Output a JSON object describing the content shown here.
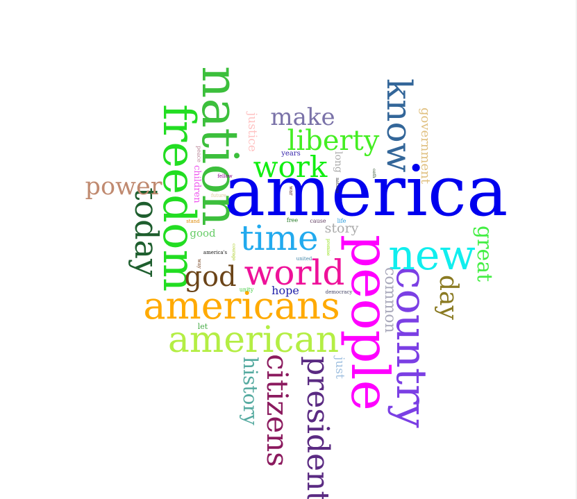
{
  "cloud": {
    "words": [
      {
        "id": "america",
        "text": "america",
        "color": "#0000ee"
      },
      {
        "id": "nation",
        "text": "nation",
        "color": "#3cbf3c"
      },
      {
        "id": "freedom",
        "text": "freedom",
        "color": "#22dd22"
      },
      {
        "id": "people",
        "text": "people",
        "color": "#ff00ff"
      },
      {
        "id": "country",
        "text": "country",
        "color": "#7b3fe4"
      },
      {
        "id": "americans",
        "text": "americans",
        "color": "#ffaa00"
      },
      {
        "id": "american",
        "text": "american",
        "color": "#b4ee44"
      },
      {
        "id": "new",
        "text": "new",
        "color": "#11eeee"
      },
      {
        "id": "know",
        "text": "know",
        "color": "#336699"
      },
      {
        "id": "world",
        "text": "world",
        "color": "#ee1199"
      },
      {
        "id": "time",
        "text": "time",
        "color": "#22aaee"
      },
      {
        "id": "work",
        "text": "work",
        "color": "#11ee11"
      },
      {
        "id": "today",
        "text": "today",
        "color": "#1e5e2e"
      },
      {
        "id": "power",
        "text": "power",
        "color": "#c08a70"
      },
      {
        "id": "make",
        "text": "make",
        "color": "#7a72a8"
      },
      {
        "id": "liberty",
        "text": "liberty",
        "color": "#44ee22"
      },
      {
        "id": "president",
        "text": "president",
        "color": "#5a2a82"
      },
      {
        "id": "citizens",
        "text": "citizens",
        "color": "#8b1a5e"
      },
      {
        "id": "history",
        "text": "history",
        "color": "#55aaa0"
      },
      {
        "id": "god",
        "text": "god",
        "color": "#6b4418"
      },
      {
        "id": "great",
        "text": "great",
        "color": "#44ee44"
      },
      {
        "id": "day",
        "text": "day",
        "color": "#8a7a22"
      },
      {
        "id": "common",
        "text": "common",
        "color": "#a9a9bb"
      },
      {
        "id": "government",
        "text": "government",
        "color": "#e0c080"
      },
      {
        "id": "justice",
        "text": "justice",
        "color": "#ffc2c2"
      },
      {
        "id": "just",
        "text": "just",
        "color": "#a0c0e0"
      },
      {
        "id": "story",
        "text": "story",
        "color": "#aaaaaa"
      },
      {
        "id": "hope",
        "text": "hope",
        "color": "#2222aa"
      },
      {
        "id": "children",
        "text": "children",
        "color": "#ee55ee"
      },
      {
        "id": "long",
        "text": "long",
        "color": "#aaaaaa"
      },
      {
        "id": "good",
        "text": "good",
        "color": "#66cc66"
      },
      {
        "id": "years",
        "text": "years",
        "color": "#3322aa"
      },
      {
        "id": "let",
        "text": "let",
        "color": "#44aa44"
      },
      {
        "id": "peace",
        "text": "peace",
        "color": "#bb8899"
      },
      {
        "id": "fellow",
        "text": "fellow",
        "color": "#880088"
      },
      {
        "id": "future",
        "text": "future",
        "color": "#ddcc99"
      },
      {
        "id": "stand",
        "text": "stand",
        "color": "#dd8800"
      },
      {
        "id": "free",
        "text": "free",
        "color": "#227722"
      },
      {
        "id": "cause",
        "text": "cause",
        "color": "#664466"
      },
      {
        "id": "life",
        "text": "life",
        "color": "#2299dd"
      },
      {
        "id": "americas",
        "text": "america's",
        "color": "#111111"
      },
      {
        "id": "courage",
        "text": "courage",
        "color": "#aacc22"
      },
      {
        "id": "promise",
        "text": "promise",
        "color": "#88dd00"
      },
      {
        "id": "way",
        "text": "way",
        "color": "#774422"
      },
      {
        "id": "united",
        "text": "united",
        "color": "#4488aa"
      },
      {
        "id": "unity",
        "text": "unity",
        "color": "#44cc44"
      },
      {
        "id": "democracy",
        "text": "democracy",
        "color": "#444466"
      },
      {
        "id": "war",
        "text": "war",
        "color": "#552222"
      },
      {
        "id": "nations",
        "text": "nations",
        "color": "#333333"
      },
      {
        "id": "oath",
        "text": "oath",
        "color": "#335533"
      }
    ]
  }
}
